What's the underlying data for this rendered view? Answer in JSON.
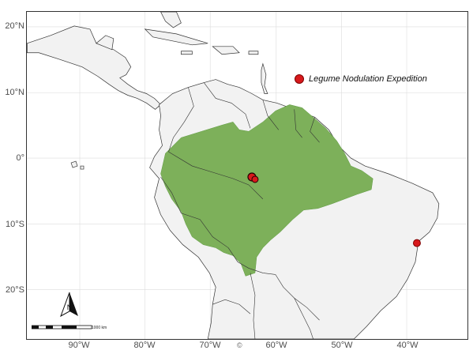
{
  "map": {
    "y_ticks": [
      "20°N",
      "10°N",
      "0°",
      "10°S",
      "20°S"
    ],
    "x_ticks": [
      "90°W",
      "80°W",
      "70°W",
      "60°W",
      "50°W",
      "40°W"
    ],
    "legend": {
      "label": "Legume Nodulation Expedition"
    },
    "scale_label": "1000 km",
    "north_label": "N",
    "credit_glyph": "©",
    "colors": {
      "land": "#f2f2f2",
      "border": "#333333",
      "amazon_region": "#7db05a",
      "sites": "#d7191c",
      "grid": "#dcdcdc"
    },
    "sites": [
      {
        "name": "site-central-amazon",
        "lon": -60.0,
        "lat": -3.0
      },
      {
        "name": "site-brazil-coast",
        "lon": -38.5,
        "lat": -13.0
      }
    ]
  }
}
